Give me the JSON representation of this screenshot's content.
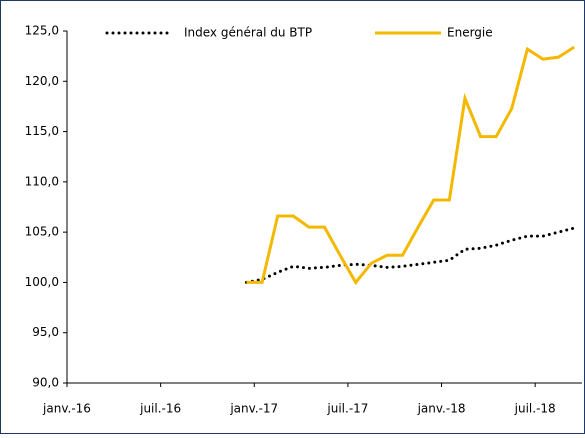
{
  "chart_data": {
    "type": "line",
    "categories": [
      "janv.-16",
      null,
      null,
      null,
      null,
      null,
      "juil.-16",
      null,
      null,
      null,
      null,
      null,
      "janv.-17",
      null,
      null,
      null,
      null,
      null,
      "juil.-17",
      null,
      null,
      null,
      null,
      null,
      "janv.-18",
      null,
      null,
      null,
      null,
      null,
      "juil.-18",
      null,
      null
    ],
    "series": [
      {
        "name": "Index général du BTP",
        "color": "#000000",
        "dash": "dotted",
        "values": [
          null,
          null,
          null,
          null,
          null,
          null,
          null,
          null,
          null,
          null,
          null,
          100,
          100.3,
          101,
          101.6,
          101.4,
          101.5,
          101.7,
          101.8,
          101.7,
          101.5,
          101.6,
          101.8,
          102,
          102.2,
          103.3,
          103.4,
          103.7,
          104.2,
          104.6,
          104.6,
          105,
          105.4
        ]
      },
      {
        "name": "Energie",
        "color": "#f5b800",
        "dash": "solid",
        "values": [
          null,
          null,
          null,
          null,
          null,
          null,
          null,
          null,
          null,
          null,
          null,
          100,
          100,
          106.6,
          106.6,
          105.5,
          105.5,
          102.7,
          100,
          101.9,
          102.7,
          102.7,
          105.5,
          108.2,
          108.2,
          118.3,
          114.5,
          114.5,
          117.3,
          123.2,
          122.2,
          122.4,
          123.4
        ]
      }
    ],
    "ylim": [
      90,
      125
    ],
    "yticks": [
      {
        "value": 90,
        "label": "90,0"
      },
      {
        "value": 95,
        "label": "95,0"
      },
      {
        "value": 100,
        "label": "100,0"
      },
      {
        "value": 105,
        "label": "105,0"
      },
      {
        "value": 110,
        "label": "110,0"
      },
      {
        "value": 115,
        "label": "115,0"
      },
      {
        "value": 120,
        "label": "120,0"
      },
      {
        "value": 125,
        "label": "125,0"
      }
    ],
    "grid": false,
    "legend": "top"
  }
}
